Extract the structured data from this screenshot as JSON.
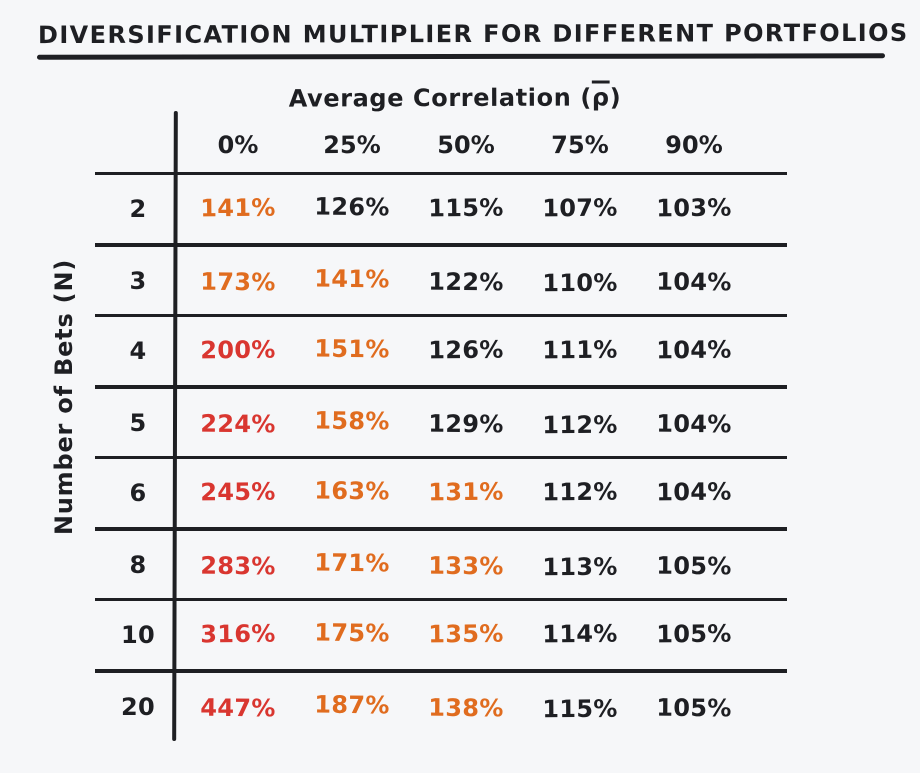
{
  "page": {
    "title": "DIVERSIFICATION MULTIPLIER FOR DIFFERENT PORTFOLIOS"
  },
  "colors": {
    "ink": "#1e1f23",
    "red": "#d93630",
    "orange": "#e06c1f",
    "background": "#f6f7f9"
  },
  "chart_data": {
    "type": "table",
    "title": "DIVERSIFICATION MULTIPLIER FOR DIFFERENT PORTFOLIOS",
    "column_axis_label": "Average Correlation (ρ̄)",
    "column_axis_label_parts": {
      "prefix": "Average Correlation (",
      "symbol": "ρ",
      "suffix": ")"
    },
    "row_axis_label": "Number of Bets (N)",
    "columns": [
      "0%",
      "25%",
      "50%",
      "75%",
      "90%"
    ],
    "rows": [
      {
        "label": "2",
        "values": [
          {
            "text": "141%",
            "tone": "orange"
          },
          {
            "text": "126%",
            "tone": "ink"
          },
          {
            "text": "115%",
            "tone": "ink"
          },
          {
            "text": "107%",
            "tone": "ink"
          },
          {
            "text": "103%",
            "tone": "ink"
          }
        ]
      },
      {
        "label": "3",
        "values": [
          {
            "text": "173%",
            "tone": "orange"
          },
          {
            "text": "141%",
            "tone": "orange"
          },
          {
            "text": "122%",
            "tone": "ink"
          },
          {
            "text": "110%",
            "tone": "ink"
          },
          {
            "text": "104%",
            "tone": "ink"
          }
        ]
      },
      {
        "label": "4",
        "values": [
          {
            "text": "200%",
            "tone": "red"
          },
          {
            "text": "151%",
            "tone": "orange"
          },
          {
            "text": "126%",
            "tone": "ink"
          },
          {
            "text": "111%",
            "tone": "ink"
          },
          {
            "text": "104%",
            "tone": "ink"
          }
        ]
      },
      {
        "label": "5",
        "values": [
          {
            "text": "224%",
            "tone": "red"
          },
          {
            "text": "158%",
            "tone": "orange"
          },
          {
            "text": "129%",
            "tone": "ink"
          },
          {
            "text": "112%",
            "tone": "ink"
          },
          {
            "text": "104%",
            "tone": "ink"
          }
        ]
      },
      {
        "label": "6",
        "values": [
          {
            "text": "245%",
            "tone": "red"
          },
          {
            "text": "163%",
            "tone": "orange"
          },
          {
            "text": "131%",
            "tone": "orange"
          },
          {
            "text": "112%",
            "tone": "ink"
          },
          {
            "text": "104%",
            "tone": "ink"
          }
        ]
      },
      {
        "label": "8",
        "values": [
          {
            "text": "283%",
            "tone": "red"
          },
          {
            "text": "171%",
            "tone": "orange"
          },
          {
            "text": "133%",
            "tone": "orange"
          },
          {
            "text": "113%",
            "tone": "ink"
          },
          {
            "text": "105%",
            "tone": "ink"
          }
        ]
      },
      {
        "label": "10",
        "values": [
          {
            "text": "316%",
            "tone": "red"
          },
          {
            "text": "175%",
            "tone": "orange"
          },
          {
            "text": "135%",
            "tone": "orange"
          },
          {
            "text": "114%",
            "tone": "ink"
          },
          {
            "text": "105%",
            "tone": "ink"
          }
        ]
      },
      {
        "label": "20",
        "values": [
          {
            "text": "447%",
            "tone": "red"
          },
          {
            "text": "187%",
            "tone": "orange"
          },
          {
            "text": "138%",
            "tone": "orange"
          },
          {
            "text": "115%",
            "tone": "ink"
          },
          {
            "text": "105%",
            "tone": "ink"
          }
        ]
      }
    ]
  }
}
